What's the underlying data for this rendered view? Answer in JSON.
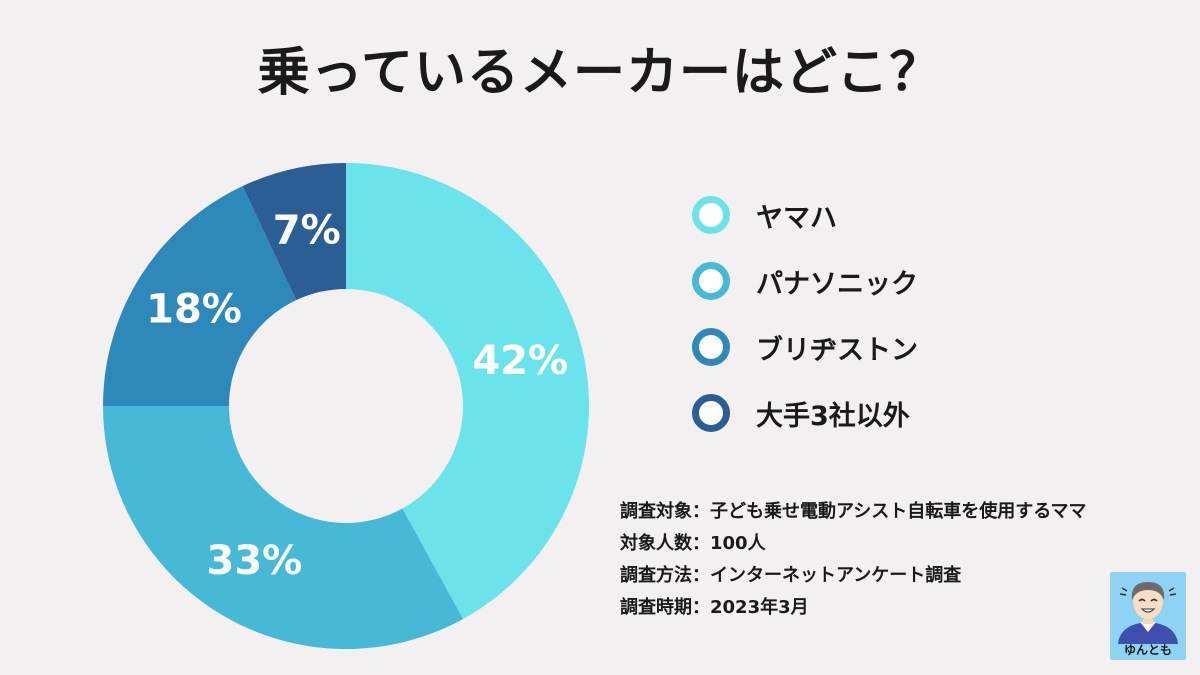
{
  "title": "乗っているメーカーはどこ？",
  "chart_data": {
    "type": "pie",
    "donut": true,
    "categories": [
      "ヤマハ",
      "パナソニック",
      "ブリヂストン",
      "大手3社以外"
    ],
    "values": [
      42,
      33,
      18,
      7
    ],
    "value_labels": [
      "42%",
      "33%",
      "18%",
      "7%"
    ],
    "colors": [
      "#6ae4ea",
      "#45b9d6",
      "#2e89bb",
      "#2c5e96"
    ],
    "unit": "%",
    "legend_position": "right"
  },
  "notes": [
    "調査対象：子ども乗せ電動アシスト自転車を使用するママ",
    "対象人数：100人",
    "調査方法：インターネットアンケート調査",
    "調査時期：2023年3月"
  ],
  "avatar": {
    "caption": "ゆんとも",
    "icon": "person-avatar-icon"
  }
}
